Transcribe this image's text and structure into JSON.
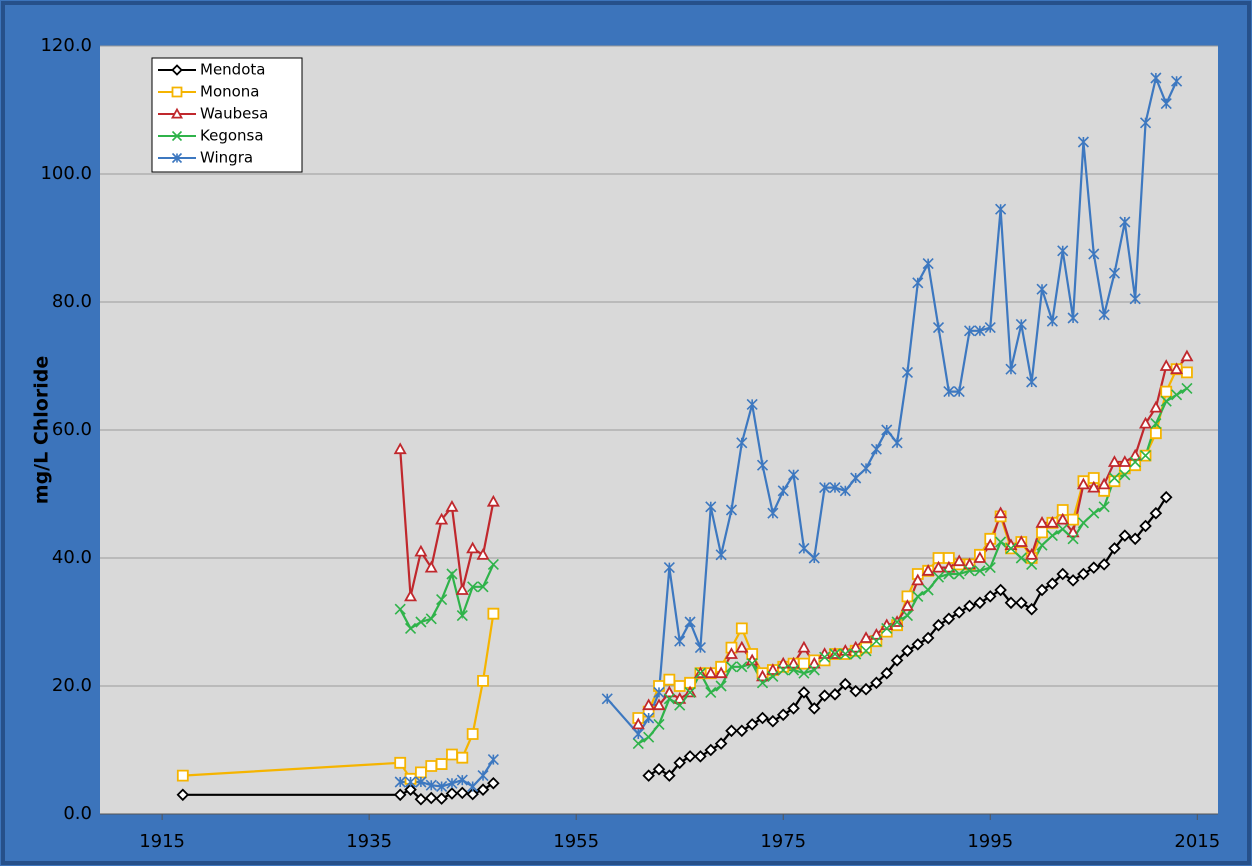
{
  "chart_data": {
    "type": "line",
    "y_label": "mg/L Chloride",
    "x": [
      1917,
      1938,
      1939,
      1940,
      1941,
      1942,
      1943,
      1944,
      1945,
      1946,
      1947,
      1950,
      1958,
      1961,
      1962,
      1963,
      1964,
      1965,
      1966,
      1967,
      1968,
      1969,
      1970,
      1971,
      1972,
      1973,
      1974,
      1975,
      1976,
      1977,
      1978,
      1979,
      1980,
      1981,
      1982,
      1983,
      1984,
      1985,
      1986,
      1987,
      1988,
      1989,
      1990,
      1991,
      1992,
      1993,
      1994,
      1995,
      1996,
      1997,
      1998,
      1999,
      2000,
      2001,
      2002,
      2003,
      2004,
      2005,
      2006,
      2007,
      2008,
      2009,
      2010,
      2011,
      2012,
      2013,
      2014
    ],
    "series": [
      {
        "name": "Mendota",
        "color": "#000000",
        "marker": "diamond",
        "values": [
          3,
          3,
          3.8,
          2.3,
          2.5,
          2.4,
          3.2,
          3.3,
          3.1,
          3.8,
          4.8,
          null,
          null,
          null,
          6,
          7,
          6,
          8,
          9,
          9,
          10,
          11,
          13,
          13,
          14,
          15,
          14.5,
          15.5,
          16.5,
          19,
          16.5,
          18.5,
          18.7,
          20.3,
          19.2,
          19.5,
          20.5,
          22,
          24,
          25.5,
          26.5,
          27.5,
          29.5,
          30.5,
          31.5,
          32.5,
          33,
          34,
          35,
          33,
          33,
          32,
          35,
          36,
          37.5,
          36.5,
          37.5,
          38.5,
          39,
          41.5,
          43.5,
          43,
          45,
          47,
          49.5,
          null,
          null
        ]
      },
      {
        "name": "Monona",
        "color": "#f5b400",
        "marker": "square",
        "values": [
          6,
          8,
          5.5,
          6.5,
          7.5,
          7.8,
          9.3,
          8.8,
          12.5,
          20.8,
          31.3,
          null,
          null,
          15,
          16,
          20,
          21,
          20,
          20.5,
          22,
          22,
          23,
          26,
          29,
          25,
          22,
          22.5,
          23,
          23.5,
          23.5,
          24,
          24,
          25,
          25,
          25.5,
          26,
          27,
          28.5,
          29.5,
          34,
          37.5,
          38,
          40,
          40,
          39,
          39,
          40.5,
          43,
          46.5,
          41.5,
          42.5,
          40,
          44,
          45.5,
          47.5,
          46,
          52,
          52.5,
          50.5,
          52,
          54,
          54.5,
          56,
          59.5,
          66,
          69.5,
          69
        ]
      },
      {
        "name": "Waubesa",
        "color": "#c0282d",
        "marker": "triangle",
        "values": [
          null,
          57,
          34,
          41,
          38.5,
          46,
          48,
          35,
          41.5,
          40.5,
          48.8,
          null,
          null,
          14,
          17,
          17,
          19,
          18,
          19,
          22,
          22,
          22,
          25,
          26,
          24,
          21.5,
          22.5,
          23.5,
          23.5,
          26,
          23.5,
          25,
          25,
          25.5,
          26,
          27.5,
          28,
          29.5,
          30,
          32.5,
          36.5,
          38,
          38.5,
          38.5,
          39.5,
          39,
          40,
          42,
          47,
          42,
          42.5,
          40.5,
          45.5,
          45.5,
          46,
          44,
          51.5,
          51,
          51.5,
          55,
          55,
          56,
          61,
          63.5,
          70,
          69.5,
          71.5
        ]
      },
      {
        "name": "Kegonsa",
        "color": "#2fb34a",
        "marker": "cross",
        "values": [
          null,
          32,
          29,
          30,
          30.5,
          33.5,
          37.5,
          31,
          35.5,
          35.5,
          39,
          null,
          null,
          11,
          12,
          14,
          18,
          17,
          19,
          22,
          19,
          20,
          23,
          23,
          23.5,
          20.5,
          21.5,
          22.5,
          22.5,
          22,
          22.5,
          24.5,
          25,
          25,
          25,
          25.5,
          27,
          29,
          30,
          31,
          34,
          35,
          37,
          37.5,
          37.5,
          38,
          38,
          38.5,
          42.5,
          41.5,
          40,
          39,
          42,
          43.5,
          44.5,
          43,
          45.5,
          47,
          48,
          52.5,
          53,
          55,
          56,
          61,
          64.5,
          65.5,
          66.5
        ]
      },
      {
        "name": "Wingra",
        "color": "#3d78c0",
        "marker": "star",
        "values": [
          null,
          5,
          5,
          5,
          4.5,
          4.3,
          4.8,
          5.3,
          4.3,
          6,
          8.5,
          null,
          18,
          12.5,
          15,
          19,
          38.5,
          27,
          30,
          26,
          48,
          40.5,
          47.5,
          58,
          64,
          54.5,
          47,
          50.5,
          53,
          41.5,
          40,
          51,
          51,
          50.5,
          52.5,
          54,
          57,
          60,
          58,
          69,
          83,
          86,
          76,
          66,
          66,
          75.5,
          75.5,
          76,
          94.5,
          69.5,
          76.5,
          67.5,
          82,
          77,
          88,
          77.5,
          105,
          87.5,
          78,
          84.5,
          92.5,
          80.5,
          108,
          115,
          111,
          114.5,
          null
        ]
      }
    ],
    "xlim": [
      1909,
      2017
    ],
    "xticks": [
      1915,
      1935,
      1955,
      1975,
      1995,
      2015
    ],
    "ylim": [
      0,
      120
    ],
    "yticks": [
      {
        "value": 0,
        "label": "0.0"
      },
      {
        "value": 20,
        "label": "20.0"
      },
      {
        "value": 40,
        "label": "40.0"
      },
      {
        "value": 60,
        "label": "60.0"
      },
      {
        "value": 80,
        "label": "80.0"
      },
      {
        "value": 100,
        "label": "100.0"
      },
      {
        "value": 120,
        "label": "120.0"
      }
    ],
    "grid": true,
    "legend": "top-left"
  }
}
